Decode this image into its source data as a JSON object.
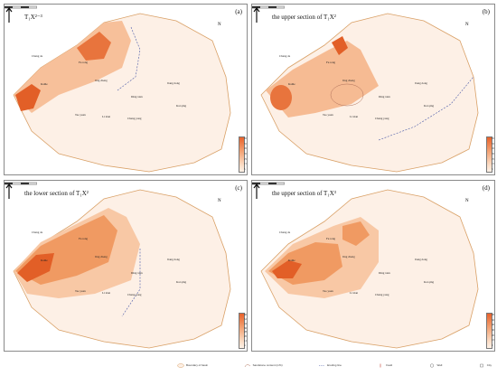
{
  "panels": [
    {
      "tag": "(a)",
      "title": "T₁X²⁻³",
      "ticks": [
        "65",
        "55",
        "45",
        "35",
        "25",
        "15",
        "5"
      ],
      "cities": [
        "Kaihe",
        "Chang de",
        "Fu rong",
        "Jing cheng",
        "Jiang dong",
        "Tao yuan",
        "Li xian",
        "Ding xian",
        "Cheng yong",
        "Kai qing"
      ]
    },
    {
      "tag": "(b)",
      "title": "the upper section of T₁X²",
      "ticks": [
        "65",
        "55",
        "45",
        "35",
        "25",
        "15",
        "5"
      ],
      "cities": [
        "Kaihe",
        "Chang de",
        "Fu rong",
        "Jing cheng",
        "Jiang dong",
        "Tao yuan",
        "Li xian",
        "Ding xian",
        "Cheng yong",
        "Kai qing"
      ]
    },
    {
      "tag": "(c)",
      "title": "the lower section of T₁X²",
      "ticks": [
        "60",
        "52",
        "44",
        "36",
        "28",
        "20",
        "12",
        "4"
      ],
      "cities": [
        "Kaihe",
        "Chang de",
        "Fu rong",
        "Jing cheng",
        "Jiang dong",
        "Tao yuan",
        "Li xian",
        "Ding xian",
        "Cheng yong",
        "Kai qing"
      ]
    },
    {
      "tag": "(d)",
      "title": "the upper section of T₁X³",
      "ticks": [
        "60",
        "50",
        "40",
        "30",
        "20",
        "10",
        "0"
      ],
      "cities": [
        "Kaihe",
        "Chang de",
        "Fu rong",
        "Jing cheng",
        "Jiang dong",
        "Tao yuan",
        "Li xian",
        "Ding xian",
        "Cheng yong",
        "Kai qing"
      ]
    }
  ],
  "north_label": "N",
  "legend": [
    {
      "label": "Boundary of basin",
      "icon": "basin-boundary-icon"
    },
    {
      "label": "Sandstone content (m%)",
      "icon": "contour-line-icon"
    },
    {
      "label": "Eroding line",
      "icon": "eroding-line-icon"
    },
    {
      "label": "Fault",
      "icon": "fault-icon"
    },
    {
      "label": "Well",
      "icon": "well-icon"
    },
    {
      "label": "City",
      "icon": "city-icon"
    }
  ],
  "colors": {
    "dark": "#e25f27",
    "mid": "#f2a070",
    "light": "#fbd8bd",
    "pale": "#fdf0e6",
    "boundary": "#d9a066",
    "erosion": "#4a5aa8"
  }
}
